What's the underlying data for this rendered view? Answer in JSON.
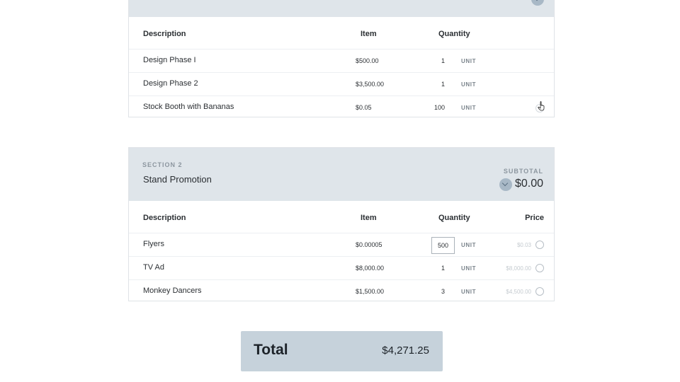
{
  "section1": {
    "columns": {
      "description": "Description",
      "item": "Item",
      "quantity": "Quantity"
    },
    "rows": [
      {
        "description": "Design Phase I",
        "item": "$500.00",
        "quantity": "1",
        "unit": "UNIT"
      },
      {
        "description": "Design Phase 2",
        "item": "$3,500.00",
        "quantity": "1",
        "unit": "UNIT"
      },
      {
        "description": "Stock Booth with Bananas",
        "item": "$0.05",
        "quantity": "100",
        "unit": "UNIT"
      }
    ]
  },
  "section2": {
    "label": "SECTION 2",
    "title": "Stand Promotion",
    "subtotal_label": "SUBTOTAL",
    "subtotal_value": "$0.00",
    "columns": {
      "description": "Description",
      "item": "Item",
      "quantity": "Quantity",
      "price": "Price"
    },
    "rows": [
      {
        "description": "Flyers",
        "item": "$0.00005",
        "quantity": "500",
        "unit": "UNIT",
        "price": "$0.03"
      },
      {
        "description": "TV Ad",
        "item": "$8,000.00",
        "quantity": "1",
        "unit": "UNIT",
        "price": "$8,000.00"
      },
      {
        "description": "Monkey Dancers",
        "item": "$1,500.00",
        "quantity": "3",
        "unit": "UNIT",
        "price": "$4,500.00"
      }
    ]
  },
  "total": {
    "label": "Total",
    "value": "$4,271.25"
  },
  "colors": {
    "header_bg": "#dfe5ea",
    "total_bg": "#c6d2db",
    "toggle": "#a8b8c6"
  },
  "icons": {
    "toggle": "chevron-down-icon",
    "select": "radio-icon",
    "pointer": "hand-cursor-icon"
  }
}
